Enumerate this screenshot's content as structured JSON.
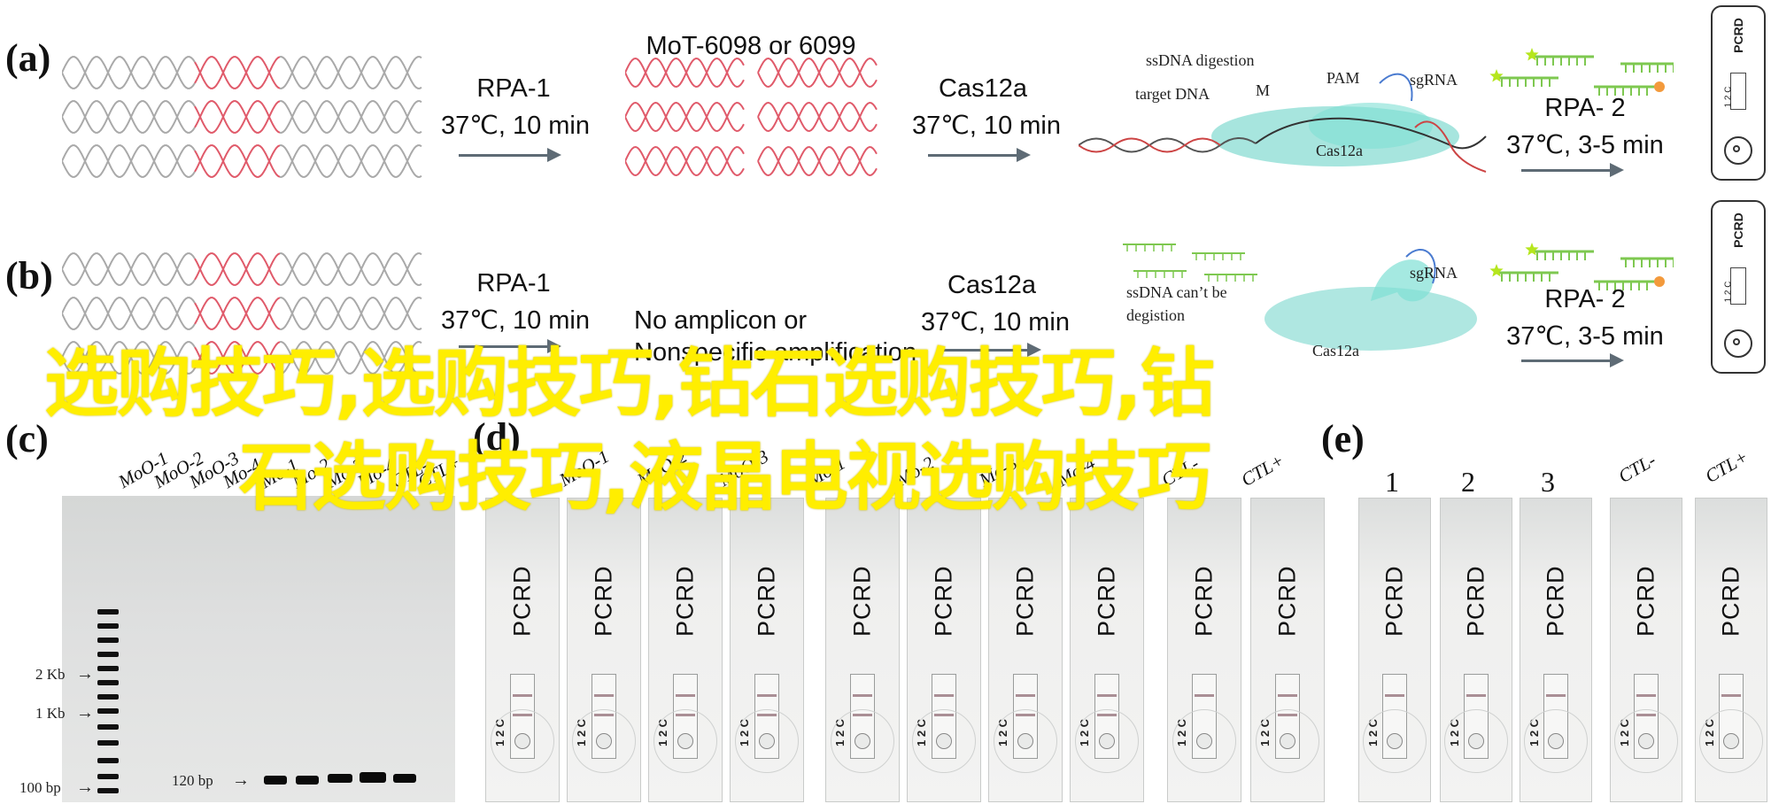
{
  "panels": {
    "a": "(a)",
    "b": "(b)",
    "c": "(c)",
    "d": "(d)",
    "e": "(e)"
  },
  "row_a": {
    "step1_title": "RPA-1",
    "step1_cond": "37℃, 10 min",
    "mot_label": "MoT-6098 or 6099",
    "step2_title": "Cas12a",
    "step2_cond": "37℃, 10 min",
    "ssdna_digestion": "ssDNA digestion",
    "target_dna": "target DNA",
    "m_label": "M",
    "pam": "PAM",
    "sgrna": "sgRNA",
    "cas12a": "Cas12a",
    "step3_title": "RPA- 2",
    "step3_cond": "37℃, 3-5 min"
  },
  "row_b": {
    "step1_title": "RPA-1",
    "step1_cond": "37℃, 10 min",
    "no_amplicon_1": "No amplicon or",
    "no_amplicon_2": "Nonspecific amplification",
    "step2_title": "Cas12a",
    "step2_cond": "37℃, 10 min",
    "cant_be_1": "ssDNA can’t be",
    "cant_be_2": "degistion",
    "sgrna": "sgRNA",
    "cas12a": "Cas12a",
    "step3_title": "RPA- 2",
    "step3_cond": "37℃, 3-5 min"
  },
  "device": {
    "brand": "PCRD",
    "ct": "1 2 C"
  },
  "gel": {
    "lanes": [
      "MoO-1",
      "MoO-2",
      "MoO-3",
      "Mo-4",
      "Mo-1",
      "Mo-2",
      "Mo-3",
      "Mo-4",
      "CTL-",
      "CTL+"
    ],
    "marker_2kb": "2 Kb",
    "marker_1kb": "1 Kb",
    "marker_100bp": "100 bp",
    "band_label": "120 bp"
  },
  "strips_d": {
    "labels": [
      "MoO-1",
      "MoO-2",
      "MoO-3",
      "Mo-1",
      "Mo-2",
      "Mo-3",
      "Mo-4",
      "CTL-",
      "CTL+"
    ],
    "brand": "PCRD",
    "ct": "1 2 C"
  },
  "strips_e": {
    "labels": [
      "1",
      "2",
      "3",
      "CTL-",
      "CTL+"
    ],
    "brand": "PCRD",
    "ct": "1 2 C"
  },
  "watermark": {
    "line1": "选购技巧,选购技巧,钻石选购技巧,钻",
    "line2": "石选购技巧,液晶电视选购技巧"
  },
  "colors": {
    "dna_gray": "#a9a9a9",
    "dna_red": "#e05a6a",
    "arrow": "#5e6b75",
    "cas_teal": "#5fd0c3",
    "primer_green": "#7ec850",
    "star_yellowgreen": "#b5e61d",
    "hex_orange": "#f39a3c",
    "watermark": "#ffee00"
  }
}
